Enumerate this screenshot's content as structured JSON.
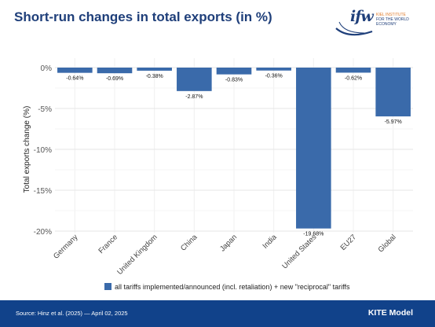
{
  "page": {
    "title": "Short-run changes in total exports (in %)",
    "source": "Source: Hinz et al. (2025) — April 02, 2025",
    "model": "KITE Model",
    "logo": {
      "mark": "ifw",
      "line1": "KIEL INSTITUTE",
      "line2": "FOR THE WORLD ECONOMY"
    }
  },
  "colors": {
    "bar": "#3a6aaa",
    "title": "#1f3f7a",
    "footer": "#11428a"
  },
  "chart_data": {
    "type": "bar",
    "categories": [
      "Germany",
      "France",
      "United Kingdom",
      "China",
      "Japan",
      "India",
      "United States",
      "EU27",
      "Global"
    ],
    "series": [
      {
        "name": "all tariffs implemented/announced (incl. retaliation) + new \"reciprocal\" tariffs",
        "values": [
          -0.64,
          -0.69,
          -0.38,
          -2.87,
          -0.83,
          -0.36,
          -19.68,
          -0.62,
          -5.97
        ],
        "labels": [
          "-0.64%",
          "-0.69%",
          "-0.38%",
          "-2.87%",
          "-0.83%",
          "-0.36%",
          "-19.68%",
          "-0.62%",
          "-5.97%"
        ]
      }
    ],
    "ylabel": "Total exports change (%)",
    "xlabel": "",
    "yticks": [
      0,
      -5,
      -10,
      -15,
      -20
    ],
    "ytick_labels": [
      "0%",
      "-5%",
      "-10%",
      "-15%",
      "-20%"
    ],
    "ylim": [
      -20,
      0
    ],
    "grid": true,
    "legend": "bottom"
  }
}
